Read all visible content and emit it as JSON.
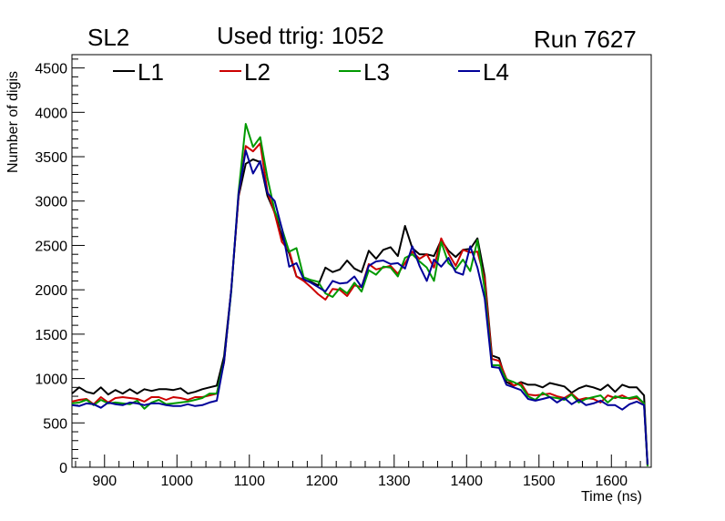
{
  "header": {
    "left": "SL2",
    "center": "Used ttrig: 1052",
    "right": "Run 7627"
  },
  "chart_data": {
    "type": "line",
    "title": "Used ttrig: 1052",
    "xlabel": "Time (ns)",
    "ylabel": "Number of digis",
    "xlim": [
      855,
      1655
    ],
    "ylim": [
      0,
      4650
    ],
    "xticks": [
      900,
      1000,
      1100,
      1200,
      1300,
      1400,
      1500,
      1600
    ],
    "yticks": [
      0,
      500,
      1000,
      1500,
      2000,
      2500,
      3000,
      3500,
      4000,
      4500
    ],
    "grid": false,
    "legend_position": "top",
    "x": [
      855,
      865,
      875,
      885,
      895,
      905,
      915,
      925,
      935,
      945,
      955,
      965,
      975,
      985,
      995,
      1005,
      1015,
      1025,
      1035,
      1045,
      1055,
      1065,
      1075,
      1085,
      1095,
      1105,
      1115,
      1125,
      1135,
      1145,
      1155,
      1165,
      1175,
      1185,
      1195,
      1205,
      1215,
      1225,
      1235,
      1245,
      1255,
      1265,
      1275,
      1285,
      1295,
      1305,
      1315,
      1325,
      1335,
      1345,
      1355,
      1365,
      1375,
      1385,
      1395,
      1405,
      1415,
      1425,
      1435,
      1445,
      1455,
      1465,
      1475,
      1485,
      1495,
      1505,
      1515,
      1525,
      1535,
      1545,
      1555,
      1565,
      1575,
      1585,
      1595,
      1605,
      1615,
      1625,
      1635,
      1645,
      1650
    ],
    "series": [
      {
        "name": "L1",
        "color": "#000000",
        "values": [
          830,
          900,
          850,
          830,
          900,
          820,
          870,
          830,
          880,
          830,
          880,
          860,
          880,
          880,
          870,
          890,
          830,
          850,
          880,
          900,
          920,
          1250,
          2000,
          3050,
          3420,
          3470,
          3440,
          3060,
          2870,
          2600,
          2410,
          2150,
          2110,
          2090,
          2050,
          2250,
          2200,
          2230,
          2330,
          2240,
          2200,
          2440,
          2350,
          2450,
          2480,
          2380,
          2720,
          2470,
          2400,
          2400,
          2380,
          2560,
          2440,
          2370,
          2450,
          2460,
          2580,
          2150,
          1260,
          1230,
          960,
          920,
          960,
          930,
          930,
          900,
          950,
          930,
          910,
          840,
          890,
          920,
          900,
          870,
          930,
          850,
          930,
          900,
          900,
          810,
          10
        ]
      },
      {
        "name": "L2",
        "color": "#cc0000",
        "values": [
          740,
          760,
          770,
          710,
          790,
          730,
          780,
          790,
          780,
          770,
          740,
          790,
          790,
          760,
          790,
          780,
          760,
          790,
          790,
          810,
          830,
          1180,
          2000,
          3050,
          3620,
          3560,
          3650,
          3110,
          2860,
          2540,
          2440,
          2150,
          2100,
          2030,
          1950,
          1890,
          2010,
          2000,
          1930,
          2050,
          2030,
          2290,
          2230,
          2250,
          2270,
          2180,
          2300,
          2430,
          2350,
          2400,
          2250,
          2580,
          2410,
          2270,
          2450,
          2420,
          2430,
          2120,
          1220,
          1200,
          1000,
          920,
          950,
          820,
          810,
          820,
          830,
          800,
          780,
          830,
          760,
          780,
          770,
          730,
          810,
          780,
          810,
          770,
          780,
          720,
          10
        ]
      },
      {
        "name": "L3",
        "color": "#009900",
        "values": [
          720,
          730,
          760,
          700,
          760,
          720,
          730,
          720,
          710,
          750,
          660,
          730,
          760,
          710,
          720,
          730,
          740,
          760,
          780,
          830,
          830,
          1200,
          1980,
          3100,
          3870,
          3610,
          3720,
          3260,
          2890,
          2690,
          2430,
          2470,
          2140,
          2110,
          2090,
          1960,
          1920,
          2020,
          1960,
          2080,
          1980,
          2220,
          2170,
          2260,
          2250,
          2150,
          2360,
          2400,
          2320,
          2250,
          2100,
          2540,
          2300,
          2230,
          2340,
          2210,
          2560,
          2000,
          1150,
          1150,
          990,
          960,
          920,
          800,
          760,
          840,
          790,
          780,
          760,
          820,
          730,
          770,
          790,
          810,
          730,
          800,
          780,
          780,
          800,
          720,
          10
        ]
      },
      {
        "name": "L4",
        "color": "#000099",
        "values": [
          700,
          690,
          720,
          710,
          670,
          730,
          710,
          700,
          730,
          720,
          700,
          720,
          720,
          700,
          690,
          690,
          710,
          690,
          700,
          730,
          750,
          1190,
          2000,
          3080,
          3570,
          3310,
          3450,
          3090,
          3000,
          2690,
          2260,
          2300,
          2120,
          2080,
          2030,
          1980,
          2100,
          2070,
          2080,
          2150,
          2030,
          2270,
          2320,
          2330,
          2290,
          2300,
          2240,
          2490,
          2270,
          2100,
          2340,
          2260,
          2360,
          2200,
          2170,
          2490,
          2250,
          1900,
          1130,
          1120,
          930,
          900,
          870,
          770,
          750,
          770,
          790,
          730,
          780,
          710,
          760,
          700,
          720,
          750,
          700,
          700,
          650,
          710,
          740,
          700,
          30
        ]
      }
    ]
  }
}
